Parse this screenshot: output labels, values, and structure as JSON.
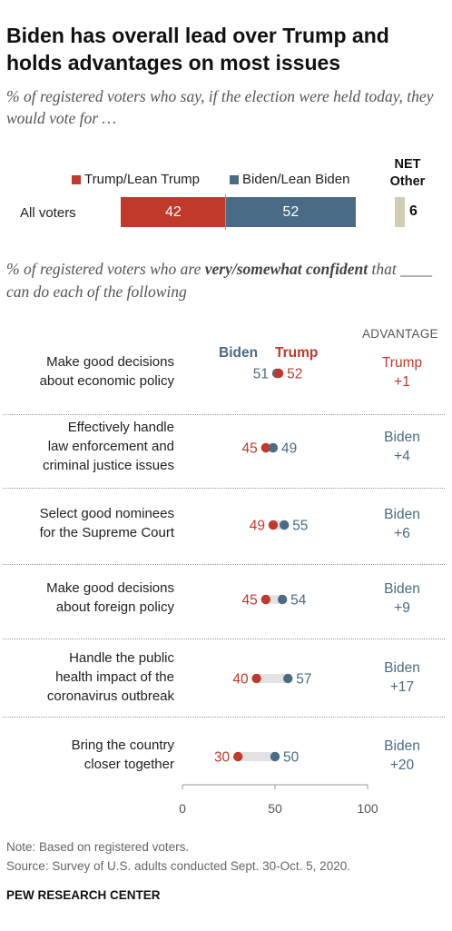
{
  "title": "Biden has overall lead over Trump and holds advantages on most issues",
  "subtitle": "% of registered voters who say, if the election were held today, they would vote for …",
  "colors": {
    "trump": "#c0392b",
    "biden": "#4a6b85",
    "other": "#d2ccb4",
    "track": "#e3e3e3"
  },
  "vote": {
    "legend_trump": "Trump/Lean Trump",
    "legend_biden": "Biden/Lean Biden",
    "net_other_label": "NET Other",
    "row_label": "All voters",
    "trump": "42",
    "biden": "52",
    "other": "6"
  },
  "confidence": {
    "subtitle_pre": "% of registered voters who are ",
    "subtitle_emph": "very/somewhat confident",
    "subtitle_post": " that ____ can do each of the following",
    "advantage_header": "ADVANTAGE",
    "col_biden": "Biden",
    "col_trump": "Trump"
  },
  "chart_data": [
    {
      "type": "bar",
      "categories": [
        "All voters"
      ],
      "series": [
        {
          "name": "Trump/Lean Trump",
          "values": [
            42
          ]
        },
        {
          "name": "Biden/Lean Biden",
          "values": [
            52
          ]
        },
        {
          "name": "NET Other",
          "values": [
            6
          ]
        }
      ],
      "title": "Biden has overall lead over Trump and holds advantages on most issues",
      "ylabel": ""
    },
    {
      "type": "scatter",
      "categories": [
        "Make good decisions about economic policy",
        "Effectively handle law enforcement and criminal justice issues",
        "Select good nominees for the Supreme Court",
        "Make good decisions about foreign policy",
        "Handle the public health impact of the coronavirus outbreak",
        "Bring the country closer together"
      ],
      "series": [
        {
          "name": "Biden",
          "values": [
            51,
            49,
            55,
            54,
            57,
            50
          ]
        },
        {
          "name": "Trump",
          "values": [
            52,
            45,
            49,
            45,
            40,
            30
          ]
        }
      ],
      "advantage": [
        "Trump +1",
        "Biden +4",
        "Biden +6",
        "Biden +9",
        "Biden +17",
        "Biden +20"
      ],
      "xlim": [
        0,
        100
      ],
      "xticks": [
        "0",
        "50",
        "100"
      ]
    }
  ],
  "issues": [
    {
      "label_lines": [
        "Make good decisions",
        "about economic policy"
      ],
      "adv_who": "Trump",
      "adv_val": "+1"
    },
    {
      "label_lines": [
        "Effectively handle",
        "law enforcement and",
        "criminal justice issues"
      ],
      "adv_who": "Biden",
      "adv_val": "+4"
    },
    {
      "label_lines": [
        "Select good nominees",
        "for the Supreme Court"
      ],
      "adv_who": "Biden",
      "adv_val": "+6"
    },
    {
      "label_lines": [
        "Make good decisions",
        "about foreign policy"
      ],
      "adv_who": "Biden",
      "adv_val": "+9"
    },
    {
      "label_lines": [
        "Handle the public",
        "health impact of the",
        "coronavirus outbreak"
      ],
      "adv_who": "Biden",
      "adv_val": "+17"
    },
    {
      "label_lines": [
        "Bring the country",
        "closer together"
      ],
      "adv_who": "Biden",
      "adv_val": "+20"
    }
  ],
  "footer": {
    "note": "Note: Based on registered voters.",
    "source": "Source: Survey of U.S. adults conducted Sept. 30-Oct. 5, 2020.",
    "org": "PEW RESEARCH CENTER"
  }
}
